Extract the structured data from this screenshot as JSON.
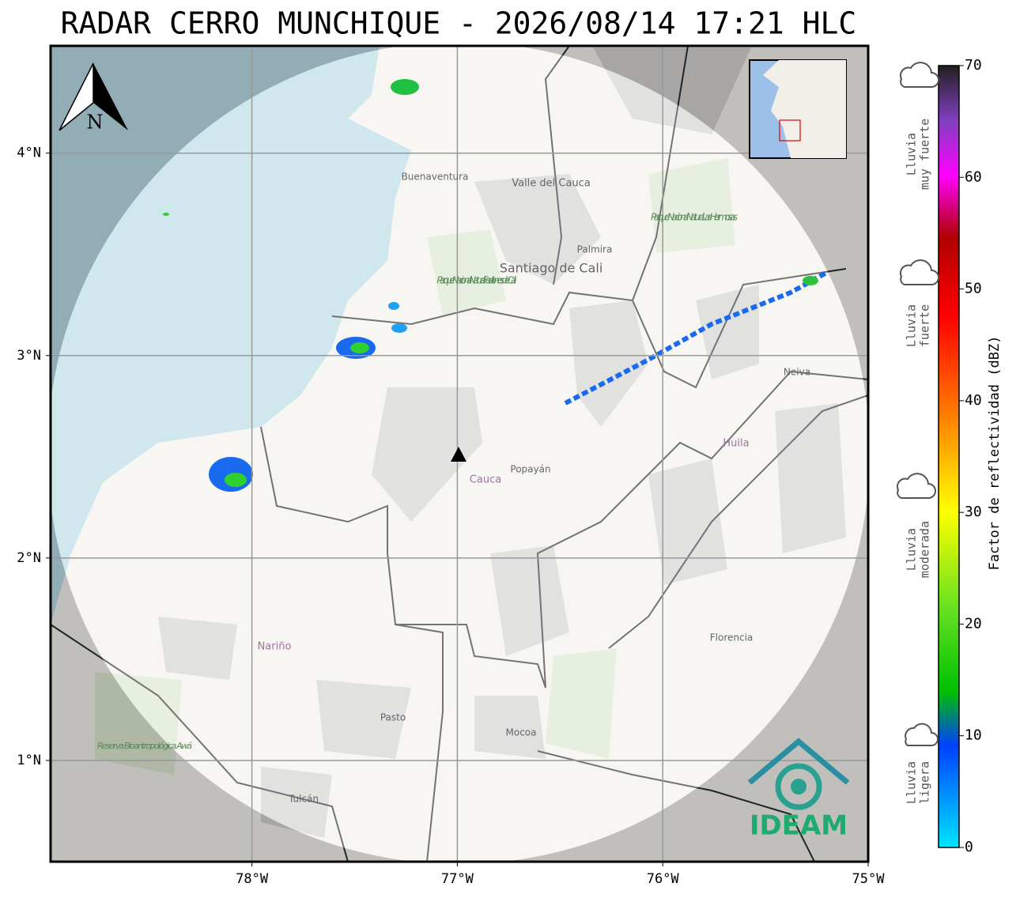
{
  "title": "RADAR CERRO MUNCHIQUE - 2026/08/14 17:21 HLC",
  "map": {
    "xlim": [
      -78.98,
      -75
    ],
    "ylim": [
      0.5,
      4.53
    ],
    "xticks": [
      {
        "value": -78,
        "label": "78°W"
      },
      {
        "value": -77,
        "label": "77°W"
      },
      {
        "value": -76,
        "label": "76°W"
      },
      {
        "value": -75,
        "label": "75°W"
      }
    ],
    "yticks": [
      {
        "value": 1,
        "label": "1°N"
      },
      {
        "value": 2,
        "label": "2°N"
      },
      {
        "value": 3,
        "label": "3°N"
      },
      {
        "value": 4,
        "label": "4°N"
      }
    ],
    "grid": true
  },
  "places": [
    "Buenaventura",
    "Valle del Cauca",
    "Palmira",
    "Santiago de Cali",
    "Parque Nacional Natural Farallones de Cali",
    "Parque Nacional Natural Las Hermosas",
    "Popayán",
    "Cauca",
    "Neiva",
    "Huila",
    "Nariño",
    "Pasto",
    "Mocoa",
    "Florencia",
    "Tulcán",
    "Reserva Bioantropológica Awá"
  ],
  "compass": "N",
  "logo": "IDEAM",
  "colorbar": {
    "label": "Factor de reflectividad (dBZ)",
    "lim": [
      0,
      70
    ],
    "ticks": [
      0,
      10,
      20,
      30,
      40,
      50,
      60,
      70
    ]
  },
  "rain_levels": [
    {
      "lines": [
        "Lluvia",
        "ligera"
      ]
    },
    {
      "lines": [
        "Lluvia",
        "moderada"
      ]
    },
    {
      "lines": [
        "Lluvia",
        "fuerte"
      ]
    },
    {
      "lines": [
        "Lluvia",
        "muy fuerte"
      ]
    }
  ]
}
